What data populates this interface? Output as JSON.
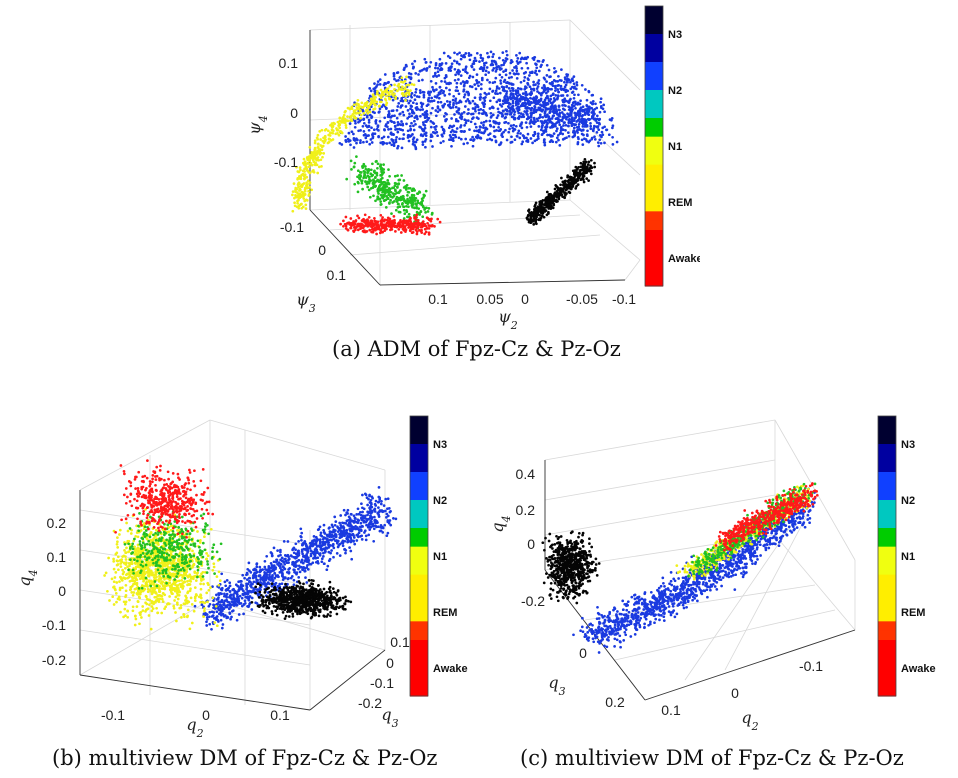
{
  "colors": {
    "Awake": "#ff1a1a",
    "REM": "#f0f01a",
    "N1": "#22c022",
    "N2": "#1a3ae0",
    "N3": "#050505"
  },
  "chart_data": [
    {
      "type": "scatter",
      "title": "",
      "caption": "(a)  ADM of Fpz-Cz & Pz-Oz",
      "axes": {
        "x": {
          "label": "ψ2",
          "ticks": [
            "0.1",
            "0.05",
            "0",
            "-0.05",
            "-0.1"
          ]
        },
        "y": {
          "label": "ψ3",
          "ticks": [
            "-0.1",
            "0",
            "0.1"
          ]
        },
        "z": {
          "label": "ψ4",
          "ticks": [
            "0.1",
            "0",
            "-0.1"
          ]
        }
      },
      "colorbar": {
        "labels": [
          "N3",
          "N2",
          "N1",
          "REM",
          "Awake"
        ]
      },
      "series": [
        {
          "name": "Awake",
          "points": 350
        },
        {
          "name": "REM",
          "points": 450
        },
        {
          "name": "N1",
          "points": 350
        },
        {
          "name": "N2",
          "points": 1900
        },
        {
          "name": "N3",
          "points": 450
        }
      ]
    },
    {
      "type": "scatter",
      "title": "",
      "caption": "(b)  multiview DM of Fpz-Cz & Pz-Oz",
      "axes": {
        "x": {
          "label": "q2",
          "ticks": [
            "-0.1",
            "0",
            "0.1"
          ]
        },
        "y": {
          "label": "q3",
          "ticks": [
            "0.1",
            "0",
            "-0.1",
            "-0.2"
          ]
        },
        "z": {
          "label": "q4",
          "ticks": [
            "0.2",
            "0.1",
            "0",
            "-0.1",
            "-0.2"
          ]
        }
      },
      "colorbar": {
        "labels": [
          "N3",
          "N2",
          "N1",
          "REM",
          "Awake"
        ]
      },
      "series": [
        {
          "name": "Awake",
          "points": 450
        },
        {
          "name": "REM",
          "points": 1100
        },
        {
          "name": "N1",
          "points": 350
        },
        {
          "name": "N2",
          "points": 1100
        },
        {
          "name": "N3",
          "points": 750
        }
      ]
    },
    {
      "type": "scatter",
      "title": "",
      "caption": "(c)  multiview DM of Fpz-Cz & Pz-Oz",
      "axes": {
        "x": {
          "label": "q2",
          "ticks": [
            "0.1",
            "0",
            "-0.1"
          ]
        },
        "y": {
          "label": "q3",
          "ticks": [
            "-0.2",
            "0",
            "0.2"
          ]
        },
        "z": {
          "label": "q4",
          "ticks": [
            "0.4",
            "0.2",
            "0"
          ]
        }
      },
      "colorbar": {
        "labels": [
          "N3",
          "N2",
          "N1",
          "REM",
          "Awake"
        ]
      },
      "series": [
        {
          "name": "Awake",
          "points": 450
        },
        {
          "name": "REM",
          "points": 450
        },
        {
          "name": "N1",
          "points": 350
        },
        {
          "name": "N2",
          "points": 1300
        },
        {
          "name": "N3",
          "points": 650
        }
      ]
    }
  ]
}
